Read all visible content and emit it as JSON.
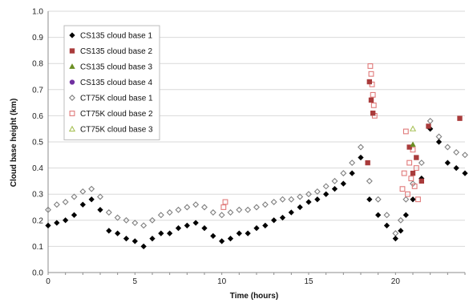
{
  "chart_data": {
    "type": "scatter",
    "title": "",
    "xlabel": "Time (hours)",
    "ylabel": "Cloud base height (km)",
    "xlim": [
      0,
      24
    ],
    "ylim": [
      0,
      1.0
    ],
    "x_ticks": [
      "0",
      "5",
      "10",
      "15",
      "20"
    ],
    "y_ticks": [
      "0.0",
      "0.1",
      "0.2",
      "0.3",
      "0.4",
      "0.5",
      "0.6",
      "0.7",
      "0.8",
      "0.9",
      "1.0"
    ],
    "grid": "horizontal",
    "legend_position": "top-left",
    "series": [
      {
        "name": "CS135 cloud base 1",
        "marker": "diamond-filled",
        "color": "#000000",
        "x": [
          0.0,
          0.5,
          1.0,
          1.5,
          2.0,
          2.5,
          3.0,
          3.5,
          4.0,
          4.5,
          5.0,
          5.5,
          6.0,
          6.5,
          7.0,
          7.5,
          8.0,
          8.5,
          9.0,
          9.5,
          10.0,
          10.5,
          11.0,
          11.5,
          12.0,
          12.5,
          13.0,
          13.5,
          14.0,
          14.5,
          15.0,
          15.5,
          16.0,
          16.5,
          17.0,
          17.5,
          18.0,
          18.5,
          19.0,
          19.5,
          20.0,
          20.3,
          20.6,
          21.0,
          21.5,
          22.0,
          22.5,
          23.0,
          23.5,
          24.0
        ],
        "y": [
          0.18,
          0.19,
          0.2,
          0.22,
          0.26,
          0.28,
          0.24,
          0.16,
          0.15,
          0.13,
          0.12,
          0.1,
          0.13,
          0.15,
          0.15,
          0.17,
          0.18,
          0.19,
          0.17,
          0.14,
          0.12,
          0.13,
          0.15,
          0.15,
          0.17,
          0.18,
          0.2,
          0.21,
          0.23,
          0.25,
          0.27,
          0.28,
          0.3,
          0.32,
          0.34,
          0.38,
          0.44,
          0.28,
          0.22,
          0.18,
          0.13,
          0.16,
          0.22,
          0.28,
          0.36,
          0.55,
          0.5,
          0.42,
          0.4,
          0.38
        ]
      },
      {
        "name": "CS135 cloud base 2",
        "marker": "square-filled",
        "color": "#a93b3b",
        "x": [
          18.4,
          18.5,
          18.6,
          18.7,
          20.8,
          21.0,
          21.2,
          21.5,
          21.9,
          23.7
        ],
        "y": [
          0.42,
          0.73,
          0.66,
          0.61,
          0.48,
          0.38,
          0.44,
          0.35,
          0.56,
          0.59
        ]
      },
      {
        "name": "CS135 cloud base 3",
        "marker": "triangle-filled",
        "color": "#6b8e23",
        "x": [
          21.0
        ],
        "y": [
          0.49
        ]
      },
      {
        "name": "CS135 cloud base 4",
        "marker": "circle-filled",
        "color": "#7030a0",
        "x": [],
        "y": []
      },
      {
        "name": "CT75K cloud base 1",
        "marker": "diamond-open",
        "color": "#808080",
        "x": [
          0.0,
          0.5,
          1.0,
          1.5,
          2.0,
          2.5,
          3.0,
          3.5,
          4.0,
          4.5,
          5.0,
          5.5,
          6.0,
          6.5,
          7.0,
          7.5,
          8.0,
          8.5,
          9.0,
          9.5,
          10.0,
          10.5,
          11.0,
          11.5,
          12.0,
          12.5,
          13.0,
          13.5,
          14.0,
          14.5,
          15.0,
          15.5,
          16.0,
          16.5,
          17.0,
          17.5,
          18.0,
          18.5,
          19.0,
          19.5,
          20.0,
          20.3,
          20.6,
          21.0,
          21.5,
          22.0,
          22.5,
          23.0,
          23.5,
          24.0
        ],
        "y": [
          0.24,
          0.26,
          0.27,
          0.29,
          0.31,
          0.32,
          0.29,
          0.23,
          0.21,
          0.2,
          0.19,
          0.18,
          0.2,
          0.22,
          0.23,
          0.24,
          0.25,
          0.26,
          0.25,
          0.23,
          0.22,
          0.23,
          0.24,
          0.24,
          0.25,
          0.26,
          0.27,
          0.28,
          0.28,
          0.29,
          0.3,
          0.31,
          0.33,
          0.35,
          0.38,
          0.42,
          0.48,
          0.35,
          0.28,
          0.22,
          0.15,
          0.2,
          0.28,
          0.34,
          0.42,
          0.58,
          0.52,
          0.48,
          0.46,
          0.45
        ]
      },
      {
        "name": "CT75K cloud base 2",
        "marker": "square-open",
        "color": "#e07a7a",
        "x": [
          10.1,
          10.2,
          18.55,
          18.6,
          18.65,
          18.7,
          18.75,
          18.8,
          20.4,
          20.5,
          20.6,
          20.7,
          20.8,
          20.9,
          21.0,
          21.1,
          21.2,
          21.3
        ],
        "y": [
          0.25,
          0.27,
          0.79,
          0.76,
          0.72,
          0.68,
          0.64,
          0.6,
          0.32,
          0.38,
          0.54,
          0.3,
          0.42,
          0.36,
          0.47,
          0.33,
          0.4,
          0.28
        ]
      },
      {
        "name": "CT75K cloud base 3",
        "marker": "triangle-open",
        "color": "#a9c25a",
        "x": [
          21.0
        ],
        "y": [
          0.55
        ]
      }
    ]
  }
}
